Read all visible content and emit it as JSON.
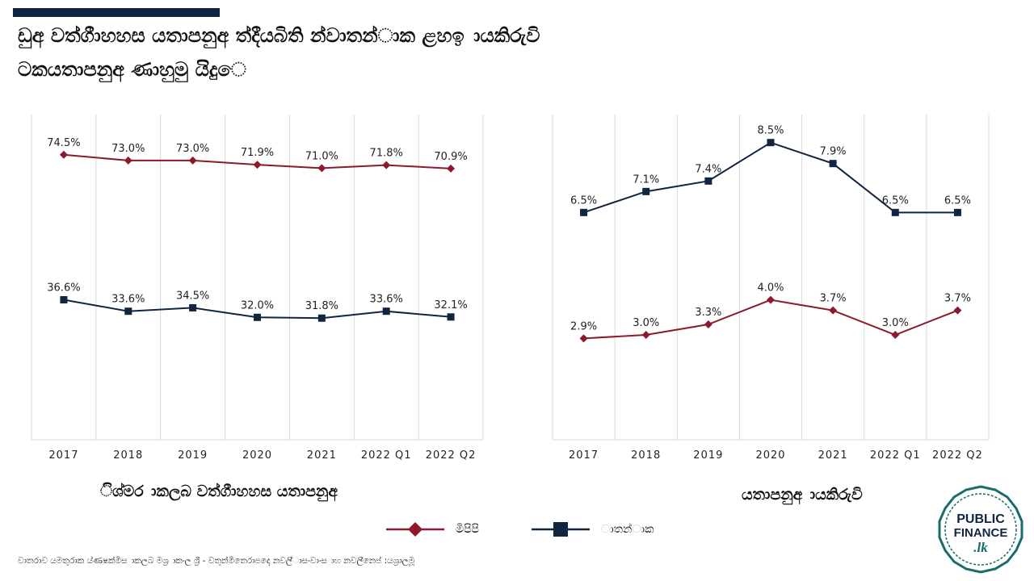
{
  "title": {
    "line1": "ඩුඅ වත්ගීාහහස යතාපනුඅ ත්දීයබිති න්වාතන්ාක ළහඉ ායකිරුවි",
    "line2": "ටකයතාපනුඅ ණාහුමු යිදුෙ"
  },
  "colors": {
    "accent_bar": "#0f2540",
    "series_red": "#8b1a2b",
    "series_navy": "#0f2540",
    "grid": "#d9d9d9"
  },
  "chart_data": [
    {
      "type": "line",
      "categories": [
        "2017",
        "2018",
        "2019",
        "2020",
        "2021",
        "2022 Q1",
        "2022 Q2"
      ],
      "series": [
        {
          "name": "මිපිපි",
          "values": [
            74.5,
            73.0,
            73.0,
            71.9,
            71.0,
            71.8,
            70.9
          ],
          "labels": [
            "74.5%",
            "73.0%",
            "73.0%",
            "71.9%",
            "71.0%",
            "71.8%",
            "70.9%"
          ],
          "color": "#8b1a2b",
          "marker": "diamond"
        },
        {
          "name": "ාතන්ාක",
          "values": [
            36.6,
            33.6,
            34.5,
            32.0,
            31.8,
            33.6,
            32.1
          ],
          "labels": [
            "36.6%",
            "33.6%",
            "34.5%",
            "32.0%",
            "31.8%",
            "33.6%",
            "32.1%"
          ],
          "color": "#0f2540",
          "marker": "square"
        }
      ],
      "xlabel": "ිශ්මර ාකලබ වත්ගීාහහස යතාපනුඅ",
      "ylim": [
        0,
        85
      ],
      "grid": "vertical",
      "y_axis_visible": false
    },
    {
      "type": "line",
      "categories": [
        "2017",
        "2018",
        "2019",
        "2020",
        "2021",
        "2022 Q1",
        "2022 Q2"
      ],
      "series": [
        {
          "name": "ාතන්ාක",
          "values": [
            6.5,
            7.1,
            7.4,
            8.5,
            7.9,
            6.5,
            6.5
          ],
          "labels": [
            "6.5%",
            "7.1%",
            "7.4%",
            "8.5%",
            "7.9%",
            "6.5%",
            "6.5%"
          ],
          "color": "#0f2540",
          "marker": "square"
        },
        {
          "name": "මිපිපි",
          "values": [
            2.9,
            3.0,
            3.3,
            4.0,
            3.7,
            3.0,
            3.7
          ],
          "labels": [
            "2.9%",
            "3.0%",
            "3.3%",
            "4.0%",
            "3.7%",
            "3.0%",
            "3.7%"
          ],
          "color": "#8b1a2b",
          "marker": "diamond"
        }
      ],
      "xlabel": "යතාපනුඅ ායකිරුවි",
      "ylim": [
        0,
        9.3
      ],
      "grid": "vertical",
      "y_axis_visible": false
    }
  ],
  "legend": [
    {
      "label": "මිපිපි",
      "color": "#8b1a2b",
      "marker": "diamond"
    },
    {
      "label": "ාතන්ාක",
      "color": "#0f2540",
      "marker": "square"
    }
  ],
  "footer": "වාතරාව යමතුරාක ය්ණෂක්මිස ාකලබ මශ්‍ර ාකංල ශ්‍රී - වතුන්මිතෙරාපදෙ නවලි්ාසංවාංස ාහ නවලි්නෙප් :යශ්‍රාලමූ",
  "logo": {
    "line1": "PUBLIC",
    "line2": "FINANCE",
    "line3": ".lk",
    "color": "#1a6b6b"
  }
}
